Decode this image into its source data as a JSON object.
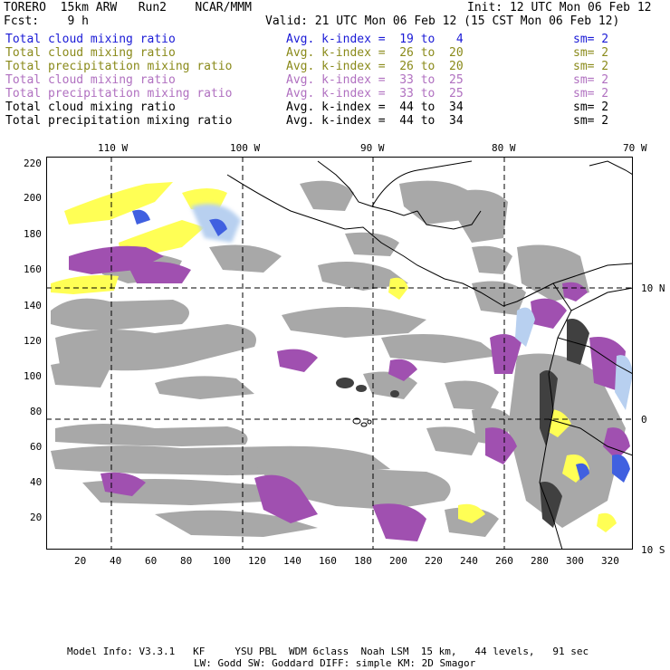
{
  "header": {
    "left1": "TORERO  15km ARW   Run2    NCAR/MMM",
    "right1": "Init: 12 UTC Mon 06 Feb 12",
    "left2": "Fcst:    9 h",
    "right2": "Valid: 21 UTC Mon 06 Feb 12 (15 CST Mon 06 Feb 12)"
  },
  "legend": [
    {
      "label": "Total cloud mixing ratio",
      "kindex": "Avg. k-index =  19 to   4",
      "sm": "sm= 2",
      "color": "#1a1ad6"
    },
    {
      "label": "Total cloud mixing ratio",
      "kindex": "Avg. k-index =  26 to  20",
      "sm": "sm= 2",
      "color": "#8a8a1a"
    },
    {
      "label": "Total precipitation mixing ratio",
      "kindex": "Avg. k-index =  26 to  20",
      "sm": "sm= 2",
      "color": "#8a8a1a"
    },
    {
      "label": "Total cloud mixing ratio",
      "kindex": "Avg. k-index =  33 to  25",
      "sm": "sm= 2",
      "color": "#b070c0"
    },
    {
      "label": "Total precipitation mixing ratio",
      "kindex": "Avg. k-index =  33 to  25",
      "sm": "sm= 2",
      "color": "#b070c0"
    },
    {
      "label": "Total cloud mixing ratio",
      "kindex": "Avg. k-index =  44 to  34",
      "sm": "sm= 2",
      "color": "#000000"
    },
    {
      "label": "Total precipitation mixing ratio",
      "kindex": "Avg. k-index =  44 to  34",
      "sm": "sm= 2",
      "color": "#000000"
    }
  ],
  "map": {
    "lon_labels": [
      "110 W",
      "100 W",
      "90 W",
      "80 W",
      "70 W"
    ],
    "lat_labels": [
      "10 N",
      "0",
      "10 S"
    ],
    "y_ticks": [
      "220",
      "200",
      "180",
      "160",
      "140",
      "120",
      "100",
      "80",
      "60",
      "40",
      "20"
    ],
    "x_ticks": [
      "20",
      "40",
      "60",
      "80",
      "100",
      "120",
      "140",
      "160",
      "180",
      "200",
      "220",
      "240",
      "260",
      "280",
      "300",
      "320"
    ],
    "colors": {
      "gray": "#a8a8a8",
      "yellow": "#ffff55",
      "purple": "#a050b0",
      "blue": "#4060e0",
      "lightblue": "#b8d0f0",
      "dark": "#404040"
    }
  },
  "footer": {
    "line1": "Model Info: V3.3.1   KF     YSU PBL  WDM 6class  Noah LSM  15 km,   44 levels,   91 sec",
    "line2": "LW: Godd SW: Goddard DIFF: simple KM: 2D Smagor"
  }
}
